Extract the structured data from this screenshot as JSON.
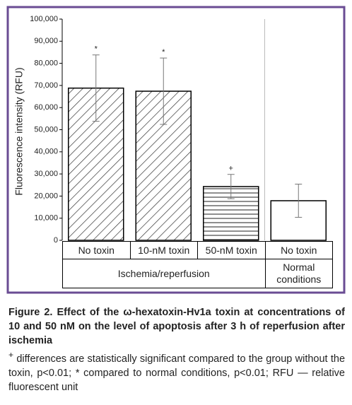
{
  "chart_data": {
    "type": "bar",
    "y_label": "Fluorescence intensity (RFU)",
    "categories": [
      "No toxin",
      "10-nM toxin",
      "50-nM toxin",
      "No toxin"
    ],
    "groups": [
      "Ischemia/reperfusion",
      "Ischemia/reperfusion",
      "Ischemia/reperfusion",
      "Normal conditions"
    ],
    "values": [
      68800,
      67400,
      24300,
      17900
    ],
    "errors": [
      15000,
      15000,
      5500,
      7500
    ],
    "annotations": [
      "*",
      "*",
      "+",
      null
    ],
    "hatch": [
      "diagonal",
      "diagonal",
      "horizontal",
      "none"
    ],
    "color": "#000000",
    "ylim": [
      0,
      100000
    ],
    "yticks": [
      0,
      {
        "value": 10000,
        "label": "10,000"
      },
      {
        "value": 20000,
        "label": "20,000"
      },
      {
        "value": 30000,
        "label": "30,000"
      },
      {
        "value": 40000,
        "label": "40,000"
      },
      {
        "value": 50000,
        "label": "50,000"
      },
      {
        "value": 60000,
        "label": "60,000"
      },
      {
        "value": 70000,
        "label": "70,000"
      },
      {
        "value": 80000,
        "label": "80,000"
      },
      {
        "value": 90000,
        "label": "90,000"
      },
      {
        "value": 100000,
        "label": "100,000"
      }
    ]
  },
  "caption": {
    "title": "Figure 2. Effect of the ω-hexatoxin-Hv1a toxin at concentrations of 10 and 50 nM on the level of apoptosis after 3 h of reperfusion after ischemia",
    "note_mark": "+",
    "note": "differences are statistically significant compared to the group without the toxin, p<0.01; * compared to normal conditions, p<0.01; RFU — relative fluorescent unit"
  }
}
